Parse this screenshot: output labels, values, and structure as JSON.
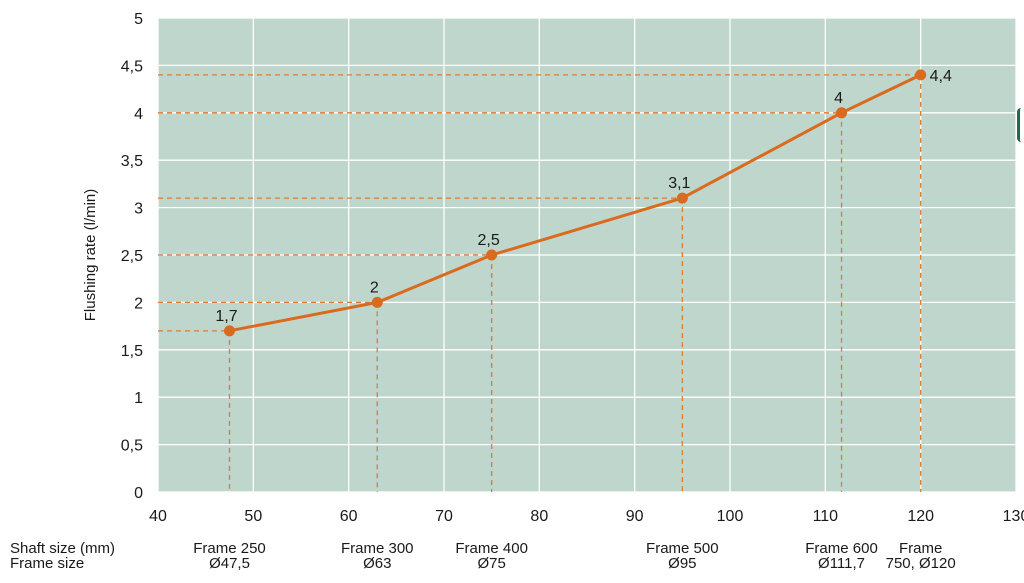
{
  "chart_data": {
    "type": "line",
    "ylabel": "Flushing rate (l/min)",
    "xlim": [
      40,
      130
    ],
    "ylim": [
      0,
      5
    ],
    "x_ticks": [
      {
        "v": 40,
        "label": "40"
      },
      {
        "v": 50,
        "label": "50"
      },
      {
        "v": 60,
        "label": "60"
      },
      {
        "v": 70,
        "label": "70"
      },
      {
        "v": 80,
        "label": "80"
      },
      {
        "v": 90,
        "label": "90"
      },
      {
        "v": 100,
        "label": "100"
      },
      {
        "v": 110,
        "label": "110"
      },
      {
        "v": 120,
        "label": "120"
      },
      {
        "v": 130,
        "label": "130"
      }
    ],
    "y_ticks": [
      {
        "v": 0,
        "label": "0"
      },
      {
        "v": 0.5,
        "label": "0,5"
      },
      {
        "v": 1,
        "label": "1"
      },
      {
        "v": 1.5,
        "label": "1,5"
      },
      {
        "v": 2,
        "label": "2"
      },
      {
        "v": 2.5,
        "label": "2,5"
      },
      {
        "v": 3,
        "label": "3"
      },
      {
        "v": 3.5,
        "label": "3,5"
      },
      {
        "v": 4,
        "label": "4"
      },
      {
        "v": 4.5,
        "label": "4,5"
      },
      {
        "v": 5,
        "label": "5"
      }
    ],
    "grid": true,
    "colors": {
      "plot_bg": "#bed6cc",
      "grid": "#ffffff",
      "series": "#d96a1e",
      "reference": "#e07a2e"
    },
    "series": [
      {
        "points": [
          {
            "x": 47.5,
            "y": 1.7,
            "label": "1,7"
          },
          {
            "x": 63,
            "y": 2.0,
            "label": "2"
          },
          {
            "x": 75,
            "y": 2.5,
            "label": "2,5"
          },
          {
            "x": 95,
            "y": 3.1,
            "label": "3,1"
          },
          {
            "x": 111.7,
            "y": 4.0,
            "label": "4"
          },
          {
            "x": 120,
            "y": 4.4,
            "label": "4,4"
          }
        ]
      }
    ],
    "reference_lines": {
      "dashed": true,
      "to_axes": true
    }
  },
  "footer": {
    "row1_label": "Shaft size (mm)",
    "row2_label": "Frame size",
    "frames": [
      {
        "x": 47.5,
        "line1": "Frame 250",
        "line2": "Ø47,5"
      },
      {
        "x": 63,
        "line1": "Frame 300",
        "line2": "Ø63"
      },
      {
        "x": 75,
        "line1": "Frame 400",
        "line2": "Ø75"
      },
      {
        "x": 95,
        "line1": "Frame 500",
        "line2": "Ø95"
      },
      {
        "x": 111.7,
        "line1": "Frame 600",
        "line2": "Ø111,7"
      },
      {
        "x": 120,
        "line1": "Frame",
        "line2": "750, Ø120"
      }
    ]
  }
}
